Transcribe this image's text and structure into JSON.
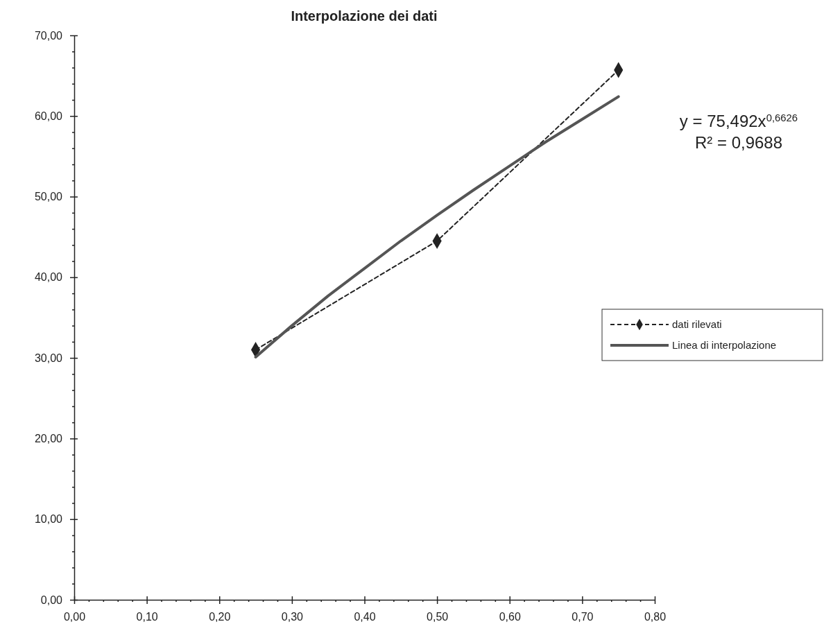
{
  "chart_data": {
    "type": "line",
    "title": "Interpolazione dei dati",
    "legend": "right",
    "grid": false,
    "xlim": [
      0,
      0.8
    ],
    "xticks": [
      {
        "value": 0,
        "label": "0,00"
      },
      {
        "value": 0.02,
        "label": null
      },
      {
        "value": 0.04,
        "label": null
      },
      {
        "value": 0.06,
        "label": null
      },
      {
        "value": 0.08,
        "label": null
      },
      {
        "value": 0.1,
        "label": "0,10"
      },
      {
        "value": 0.12,
        "label": null
      },
      {
        "value": 0.14,
        "label": null
      },
      {
        "value": 0.16,
        "label": null
      },
      {
        "value": 0.18,
        "label": null
      },
      {
        "value": 0.2,
        "label": "0,20"
      },
      {
        "value": 0.22,
        "label": null
      },
      {
        "value": 0.24,
        "label": null
      },
      {
        "value": 0.26,
        "label": null
      },
      {
        "value": 0.28,
        "label": null
      },
      {
        "value": 0.3,
        "label": "0,30"
      },
      {
        "value": 0.32,
        "label": null
      },
      {
        "value": 0.34,
        "label": null
      },
      {
        "value": 0.36,
        "label": null
      },
      {
        "value": 0.38,
        "label": null
      },
      {
        "value": 0.4,
        "label": "0,40"
      },
      {
        "value": 0.42,
        "label": null
      },
      {
        "value": 0.44,
        "label": null
      },
      {
        "value": 0.46,
        "label": null
      },
      {
        "value": 0.48,
        "label": null
      },
      {
        "value": 0.5,
        "label": "0,50"
      },
      {
        "value": 0.52,
        "label": null
      },
      {
        "value": 0.54,
        "label": null
      },
      {
        "value": 0.56,
        "label": null
      },
      {
        "value": 0.58,
        "label": null
      },
      {
        "value": 0.6,
        "label": "0,60"
      },
      {
        "value": 0.62,
        "label": null
      },
      {
        "value": 0.64,
        "label": null
      },
      {
        "value": 0.66,
        "label": null
      },
      {
        "value": 0.68,
        "label": null
      },
      {
        "value": 0.7,
        "label": "0,70"
      },
      {
        "value": 0.72,
        "label": null
      },
      {
        "value": 0.74,
        "label": null
      },
      {
        "value": 0.76,
        "label": null
      },
      {
        "value": 0.78,
        "label": null
      },
      {
        "value": 0.8,
        "label": "0,80"
      }
    ],
    "ylim": [
      0,
      70
    ],
    "yticks": [
      {
        "value": 0,
        "label": "0,00"
      },
      {
        "value": 2,
        "label": null
      },
      {
        "value": 4,
        "label": null
      },
      {
        "value": 6,
        "label": null
      },
      {
        "value": 8,
        "label": null
      },
      {
        "value": 10,
        "label": "10,00"
      },
      {
        "value": 12,
        "label": null
      },
      {
        "value": 14,
        "label": null
      },
      {
        "value": 16,
        "label": null
      },
      {
        "value": 18,
        "label": null
      },
      {
        "value": 20,
        "label": "20,00"
      },
      {
        "value": 22,
        "label": null
      },
      {
        "value": 24,
        "label": null
      },
      {
        "value": 26,
        "label": null
      },
      {
        "value": 28,
        "label": null
      },
      {
        "value": 30,
        "label": "30,00"
      },
      {
        "value": 32,
        "label": null
      },
      {
        "value": 34,
        "label": null
      },
      {
        "value": 36,
        "label": null
      },
      {
        "value": 38,
        "label": null
      },
      {
        "value": 40,
        "label": "40,00"
      },
      {
        "value": 42,
        "label": null
      },
      {
        "value": 44,
        "label": null
      },
      {
        "value": 46,
        "label": null
      },
      {
        "value": 48,
        "label": null
      },
      {
        "value": 50,
        "label": "50,00"
      },
      {
        "value": 52,
        "label": null
      },
      {
        "value": 54,
        "label": null
      },
      {
        "value": 56,
        "label": null
      },
      {
        "value": 58,
        "label": null
      },
      {
        "value": 60,
        "label": "60,00"
      },
      {
        "value": 62,
        "label": null
      },
      {
        "value": 64,
        "label": null
      },
      {
        "value": 66,
        "label": null
      },
      {
        "value": 68,
        "label": null
      },
      {
        "value": 70,
        "label": "70,00"
      }
    ],
    "series": [
      {
        "name": "dati rilevati",
        "color": "#222222",
        "marker": "diamond",
        "line_style": "dashed",
        "x": [
          0.25,
          0.5,
          0.75
        ],
        "values": [
          31.0,
          44.5,
          65.7
        ]
      },
      {
        "name": "Linea di interpolazione",
        "color": "#555555",
        "marker": "none",
        "line_style": "solid",
        "x": [
          0.25,
          0.3,
          0.35,
          0.4,
          0.45,
          0.5,
          0.55,
          0.6,
          0.65,
          0.7,
          0.75
        ],
        "values": [
          30.1,
          34.0,
          37.7,
          41.1,
          44.5,
          47.7,
          50.8,
          53.8,
          56.8,
          59.6,
          62.4
        ]
      }
    ],
    "annotations": [
      "y = 75,492x$^{0,6626}$",
      "R² = 0,9688"
    ]
  }
}
